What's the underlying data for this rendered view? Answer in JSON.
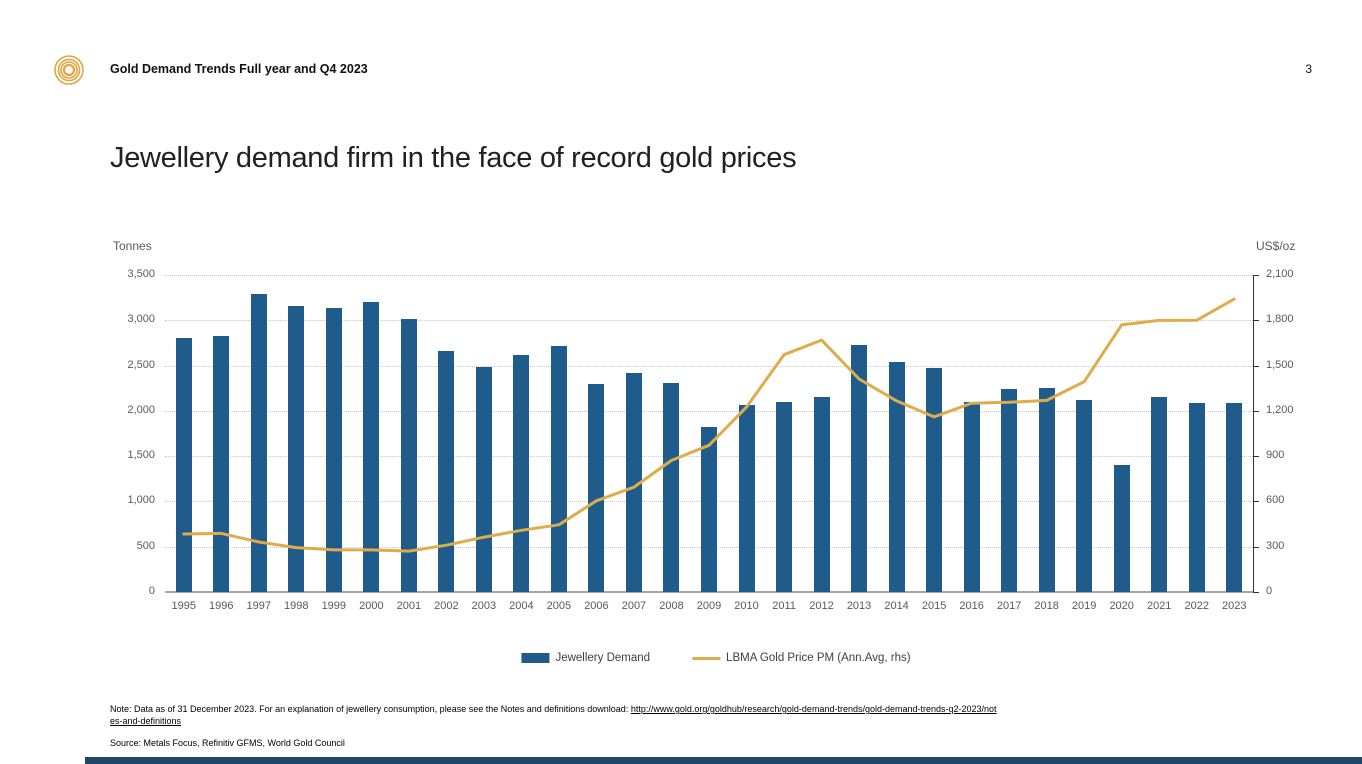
{
  "header": {
    "title": "Gold Demand Trends Full year and Q4 2023",
    "page_number": "3",
    "logo_color": "#E2A43E"
  },
  "slide": {
    "title": "Jewellery demand firm in the face of record gold prices"
  },
  "chart_data": {
    "type": "bar",
    "subtype": "combo bar+line, dual axis",
    "title": "",
    "left_axis": {
      "label": "Tonnes",
      "min": 0,
      "max": 3500,
      "step": 500
    },
    "right_axis": {
      "label": "US$/oz",
      "min": 0,
      "max": 2100,
      "step": 300
    },
    "grid": "horizontal dotted",
    "legend_position": "bottom-center",
    "categories": [
      "1995",
      "1996",
      "1997",
      "1998",
      "1999",
      "2000",
      "2001",
      "2002",
      "2003",
      "2004",
      "2005",
      "2006",
      "2007",
      "2008",
      "2009",
      "2010",
      "2011",
      "2012",
      "2013",
      "2014",
      "2015",
      "2016",
      "2017",
      "2018",
      "2019",
      "2020",
      "2021",
      "2022",
      "2023"
    ],
    "series": [
      {
        "name": "Jewellery Demand",
        "type": "bar",
        "axis": "left",
        "color": "#1F5C8B",
        "values": [
          2800,
          2830,
          3290,
          3160,
          3140,
          3200,
          3010,
          2660,
          2480,
          2620,
          2720,
          2300,
          2420,
          2310,
          1820,
          2060,
          2100,
          2150,
          2730,
          2540,
          2470,
          2100,
          2240,
          2250,
          2120,
          1400,
          2150,
          2090,
          2090
        ]
      },
      {
        "name": "LBMA Gold Price PM (Ann.Avg, rhs)",
        "type": "line",
        "axis": "right",
        "color": "#DFAC4C",
        "values": [
          384,
          388,
          331,
          294,
          279,
          279,
          271,
          310,
          363,
          409,
          445,
          604,
          695,
          872,
          972,
          1225,
          1572,
          1669,
          1411,
          1266,
          1160,
          1251,
          1257,
          1269,
          1393,
          1770,
          1799,
          1800,
          1941
        ]
      }
    ]
  },
  "footer": {
    "note_prefix": "Note: Data as of 31 December 2023. For an explanation of jewellery consumption, please see the Notes and definitions download: ",
    "note_link": "http://www.gold.org/goldhub/research/gold-demand-trends/gold-demand-trends-q2-2023/notes-and-definitions",
    "source": "Source: Metals Focus, Refinitiv GFMS, World Gold Council"
  }
}
